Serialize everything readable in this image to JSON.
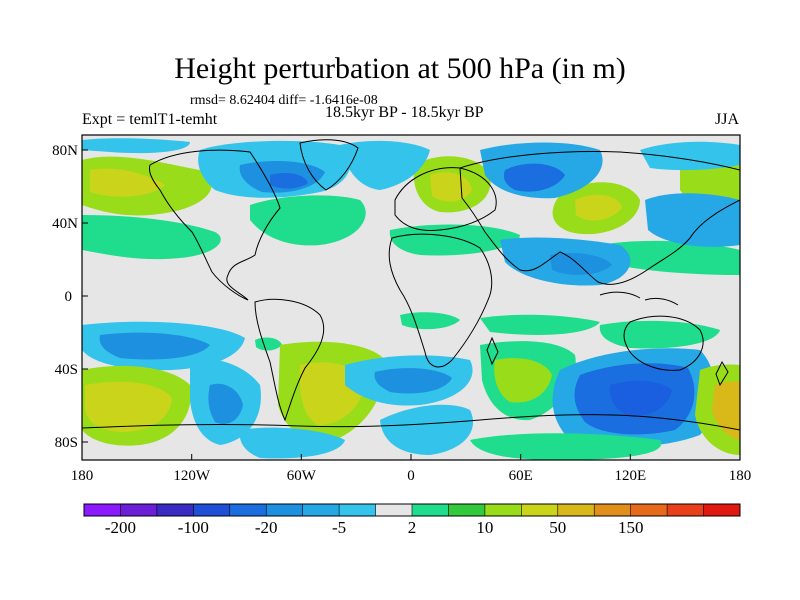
{
  "figure": {
    "title": "Height perturbation at 500 hPa (in m)",
    "stats": "rmsd= 8.62404 diff= -1.6416e-08",
    "experiment": "Expt = temlT1-temht",
    "period": "18.5kyr BP - 18.5kyr BP",
    "season": "JJA"
  },
  "axes": {
    "lat_ticks": [
      "80N",
      "40N",
      "0",
      "40S",
      "80S"
    ],
    "lon_ticks": [
      "180",
      "120W",
      "60W",
      "0",
      "60E",
      "120E",
      "180"
    ]
  },
  "colorbar": {
    "colors": [
      "#8c1aff",
      "#6b1fd6",
      "#3a2bc4",
      "#1f4fd6",
      "#1a6ee0",
      "#1e90e0",
      "#26a8e6",
      "#33c3eb",
      "#e6e6e6",
      "#1fdd8c",
      "#33c93c",
      "#99dd1a",
      "#c9d41a",
      "#d9b81a",
      "#e0901a",
      "#e66a1a",
      "#e8401a",
      "#e01a10"
    ],
    "labels": [
      "-200",
      "-100",
      "-20",
      "-5",
      "2",
      "10",
      "50",
      "150"
    ]
  },
  "colors": {
    "background": "#e6e6e6",
    "negative_strong": "#1a5fe0",
    "negative_weak": "#33c3eb",
    "positive_weak": "#1fdd8c",
    "positive_mid": "#99dd1a",
    "positive_strong": "#d9b81a"
  }
}
